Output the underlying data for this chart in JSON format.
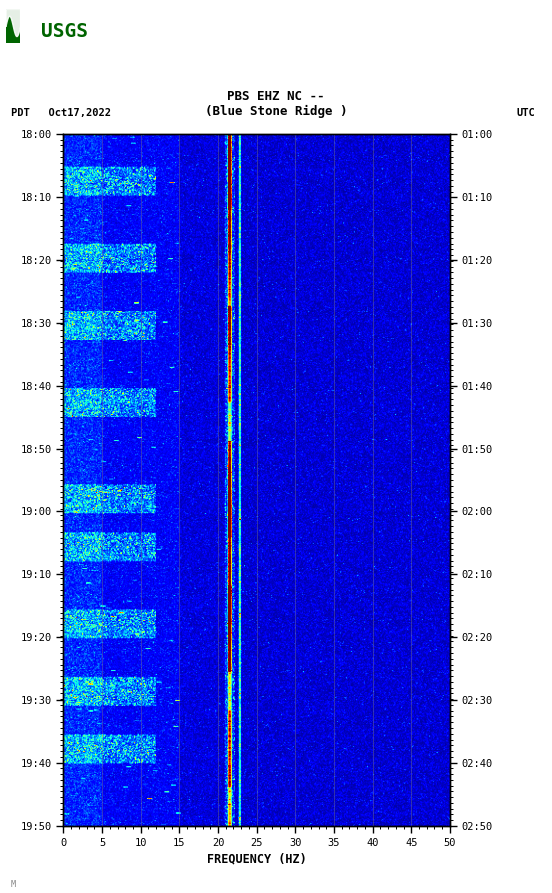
{
  "title_line1": "PBS EHZ NC --",
  "title_line2": "(Blue Stone Ridge )",
  "left_label": "PDT   Oct17,2022",
  "right_label": "UTC",
  "freq_min": 0,
  "freq_max": 50,
  "freq_ticks": [
    0,
    5,
    10,
    15,
    20,
    25,
    30,
    35,
    40,
    45,
    50
  ],
  "freq_label": "FREQUENCY (HZ)",
  "time_ticks_left": [
    "18:00",
    "18:10",
    "18:20",
    "18:30",
    "18:40",
    "18:50",
    "19:00",
    "19:10",
    "19:20",
    "19:30",
    "19:40",
    "19:50"
  ],
  "time_ticks_right": [
    "01:00",
    "01:10",
    "01:20",
    "01:30",
    "01:40",
    "01:50",
    "02:00",
    "02:10",
    "02:20",
    "02:30",
    "02:40",
    "02:50"
  ],
  "n_time": 720,
  "n_freq": 500,
  "dominant_freq": 21.5,
  "dominant_freq2": 23.0,
  "colormap": "jet",
  "usgs_logo_color": "#006400",
  "vertical_lines_freqs": [
    5,
    10,
    15,
    20,
    25,
    30,
    35,
    40,
    45
  ],
  "fig_width": 5.52,
  "fig_height": 8.93,
  "vmin": 0,
  "vmax": 10
}
